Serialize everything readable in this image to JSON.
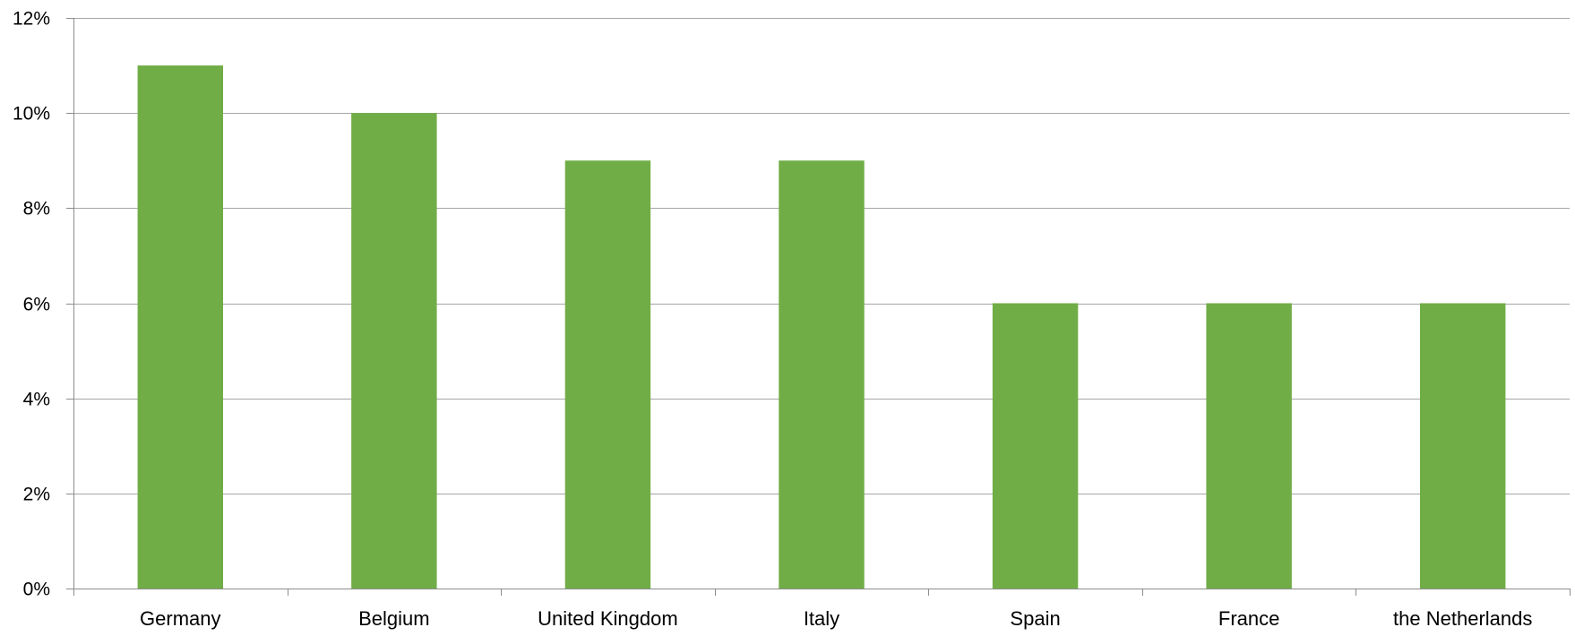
{
  "chart_data": {
    "type": "bar",
    "title": "",
    "xlabel": "",
    "ylabel": "",
    "categories": [
      "Germany",
      "Belgium",
      "United Kingdom",
      "Italy",
      "Spain",
      "France",
      "the Netherlands"
    ],
    "values": [
      11,
      10,
      9,
      9,
      6,
      6,
      6
    ],
    "value_format": "percent",
    "ylim": [
      0,
      12
    ],
    "yticks": [
      0,
      2,
      4,
      6,
      8,
      10,
      12
    ],
    "ytick_labels": [
      "0%",
      "2%",
      "4%",
      "6%",
      "8%",
      "10%",
      "12%"
    ],
    "grid": true,
    "legend": "none",
    "colors": {
      "bar": "#70AD47",
      "grid": "#A6A6A6",
      "axis": "#8C8C8C"
    }
  }
}
